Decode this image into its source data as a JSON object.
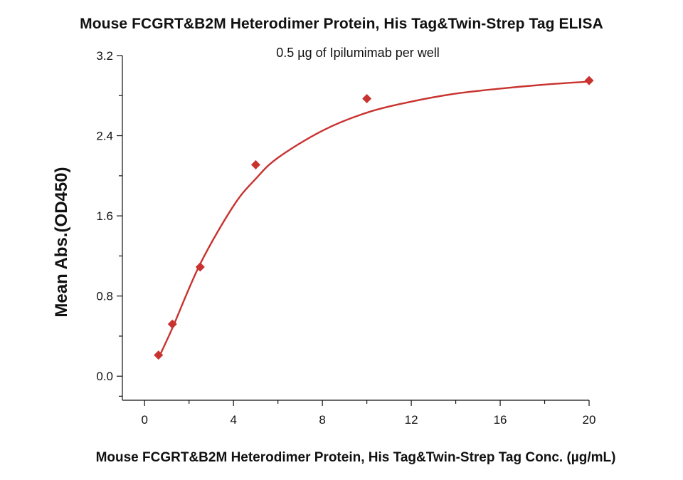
{
  "chart_data": {
    "type": "scatter",
    "title": "Mouse FCGRT&B2M Heterodimer Protein, His Tag&Twin-Strep Tag ELISA",
    "subtitle": "0.5 µg of Ipilumimab per well",
    "xlabel": "Mouse FCGRT&B2M Heterodimer Protein, His Tag&Twin-Strep Tag Conc. (µg/mL)",
    "ylabel": "Mean Abs.(OD450)",
    "xlim": [
      -1,
      20
    ],
    "ylim": [
      -0.24,
      3.2
    ],
    "x_ticks": [
      "0",
      "4",
      "8",
      "12",
      "16",
      "20"
    ],
    "y_ticks": [
      "0.0",
      "0.8",
      "1.6",
      "2.4",
      "3.2"
    ],
    "grid": false,
    "legend": "none",
    "series": [
      {
        "marker": "diamond",
        "color": "#c8322f",
        "points": [
          {
            "x": 0.625,
            "y": 0.21
          },
          {
            "x": 1.25,
            "y": 0.52
          },
          {
            "x": 2.5,
            "y": 1.09
          },
          {
            "x": 5,
            "y": 2.11
          },
          {
            "x": 10,
            "y": 2.77
          },
          {
            "x": 20,
            "y": 2.95
          }
        ]
      }
    ],
    "fit_curve": {
      "color": "#c8322f",
      "points": [
        {
          "x": 0.625,
          "y": 0.18
        },
        {
          "x": 1.25,
          "y": 0.48
        },
        {
          "x": 2.5,
          "y": 1.12
        },
        {
          "x": 4,
          "y": 1.7
        },
        {
          "x": 5,
          "y": 1.97
        },
        {
          "x": 6,
          "y": 2.18
        },
        {
          "x": 8,
          "y": 2.45
        },
        {
          "x": 10,
          "y": 2.63
        },
        {
          "x": 12,
          "y": 2.74
        },
        {
          "x": 14,
          "y": 2.82
        },
        {
          "x": 16,
          "y": 2.87
        },
        {
          "x": 18,
          "y": 2.91
        },
        {
          "x": 20,
          "y": 2.94
        }
      ]
    }
  }
}
